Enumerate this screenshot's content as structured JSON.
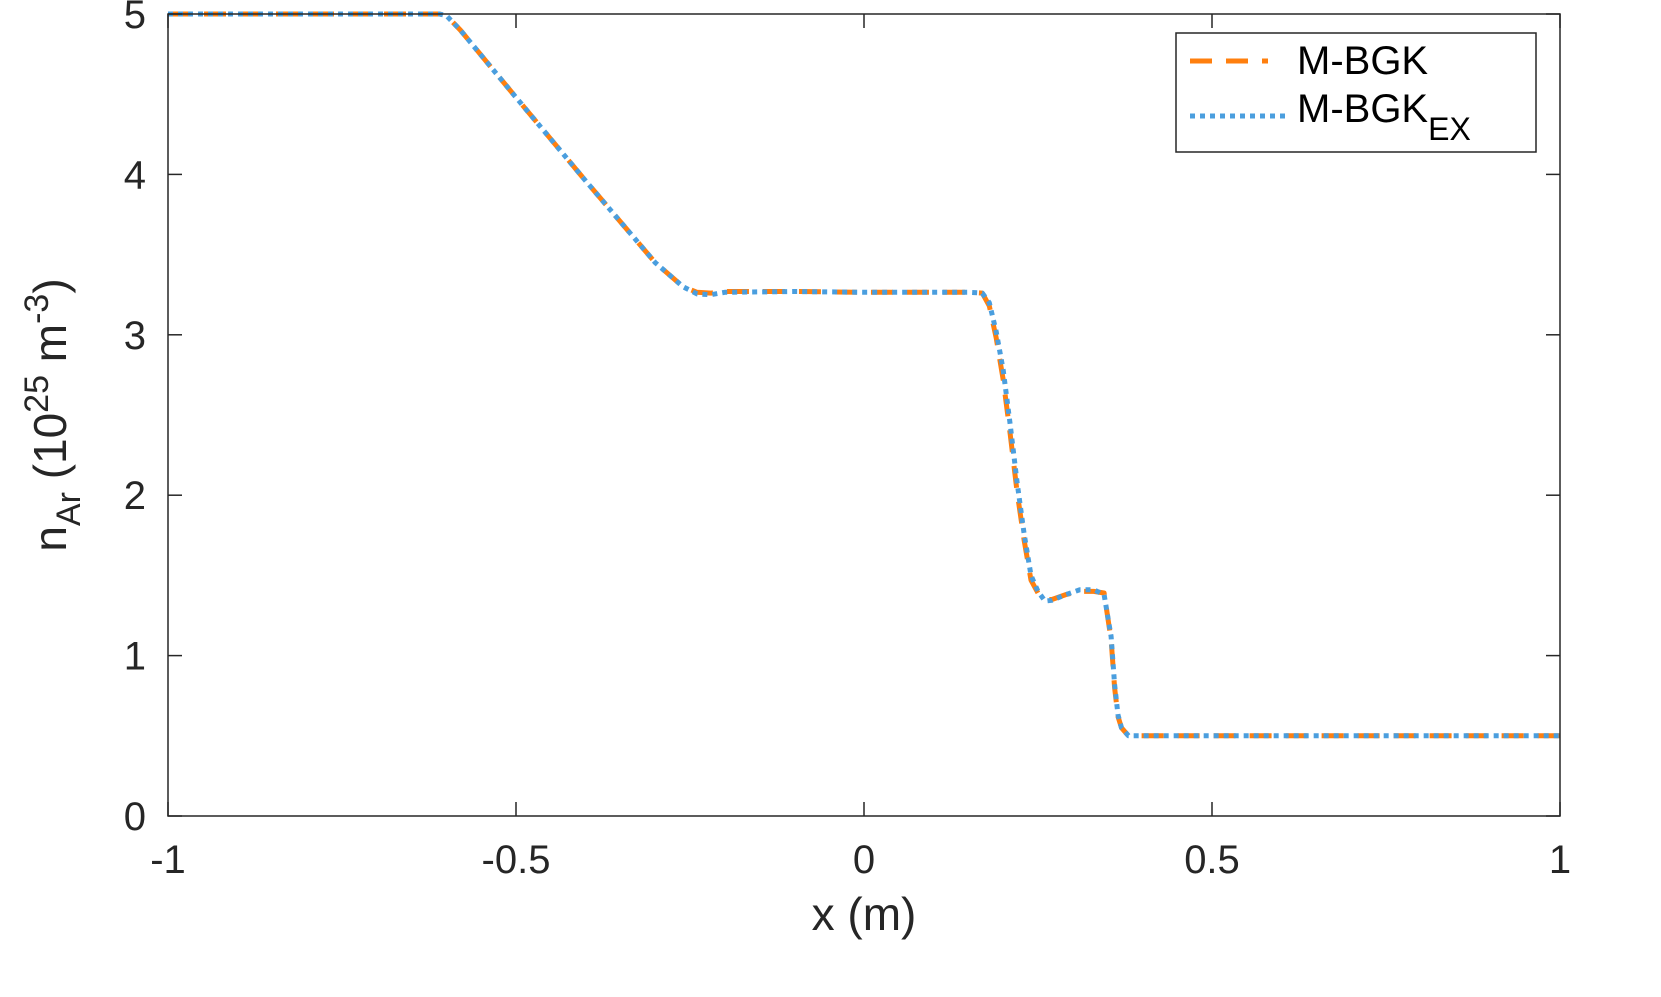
{
  "chart_data": {
    "type": "line",
    "xlabel": "x (m)",
    "ylabel": {
      "base": "n",
      "subscript": "Ar",
      "unit_open": " (10",
      "unit_exp1": "25",
      "unit_mid": " m",
      "unit_exp2": "-3",
      "unit_close": ")"
    },
    "xlim": [
      -1,
      1
    ],
    "ylim": [
      0,
      5
    ],
    "xticks": [
      -1,
      -0.5,
      0,
      0.5,
      1
    ],
    "xtick_labels": [
      "-1",
      "-0.5",
      "0",
      "0.5",
      "1"
    ],
    "yticks": [
      0,
      1,
      2,
      3,
      4,
      5
    ],
    "ytick_labels": [
      "0",
      "1",
      "2",
      "3",
      "4",
      "5"
    ],
    "grid": false,
    "legend_position": "top-right",
    "series": [
      {
        "name": "M-BGK",
        "name_base": "M-BGK",
        "name_sub": "",
        "color": "#ff7f0e",
        "style": "dashed",
        "x": [
          -1.0,
          -0.7,
          -0.61,
          -0.6,
          -0.58,
          -0.5,
          -0.4,
          -0.3,
          -0.26,
          -0.24,
          -0.22,
          -0.2,
          -0.1,
          0.0,
          0.1,
          0.15,
          0.17,
          0.18,
          0.19,
          0.2,
          0.21,
          0.22,
          0.23,
          0.24,
          0.25,
          0.26,
          0.27,
          0.29,
          0.31,
          0.33,
          0.345,
          0.355,
          0.36,
          0.365,
          0.37,
          0.38,
          0.4,
          0.6,
          0.8,
          1.0
        ],
        "y": [
          5.0,
          5.0,
          5.0,
          4.99,
          4.9,
          4.48,
          3.96,
          3.45,
          3.3,
          3.265,
          3.26,
          3.27,
          3.27,
          3.265,
          3.265,
          3.265,
          3.26,
          3.18,
          2.98,
          2.72,
          2.38,
          2.02,
          1.72,
          1.47,
          1.39,
          1.35,
          1.35,
          1.38,
          1.4,
          1.4,
          1.39,
          1.1,
          0.8,
          0.62,
          0.55,
          0.5,
          0.5,
          0.5,
          0.5,
          0.5
        ]
      },
      {
        "name": "M-BGKEX",
        "name_base": "M-BGK",
        "name_sub": "EX",
        "color": "#4a9ede",
        "style": "dotted",
        "x": [
          -1.0,
          -0.7,
          -0.61,
          -0.6,
          -0.58,
          -0.5,
          -0.4,
          -0.3,
          -0.26,
          -0.24,
          -0.22,
          -0.2,
          -0.1,
          0.0,
          0.1,
          0.15,
          0.17,
          0.18,
          0.19,
          0.2,
          0.21,
          0.22,
          0.23,
          0.24,
          0.25,
          0.26,
          0.27,
          0.29,
          0.31,
          0.33,
          0.345,
          0.355,
          0.36,
          0.365,
          0.37,
          0.38,
          0.4,
          0.6,
          0.8,
          1.0
        ],
        "y": [
          5.0,
          5.0,
          5.0,
          4.99,
          4.9,
          4.48,
          3.96,
          3.45,
          3.3,
          3.255,
          3.25,
          3.265,
          3.27,
          3.265,
          3.265,
          3.265,
          3.26,
          3.2,
          3.02,
          2.78,
          2.44,
          2.08,
          1.76,
          1.5,
          1.4,
          1.34,
          1.345,
          1.38,
          1.41,
          1.41,
          1.38,
          1.12,
          0.82,
          0.63,
          0.55,
          0.5,
          0.5,
          0.5,
          0.5,
          0.5
        ]
      }
    ]
  }
}
